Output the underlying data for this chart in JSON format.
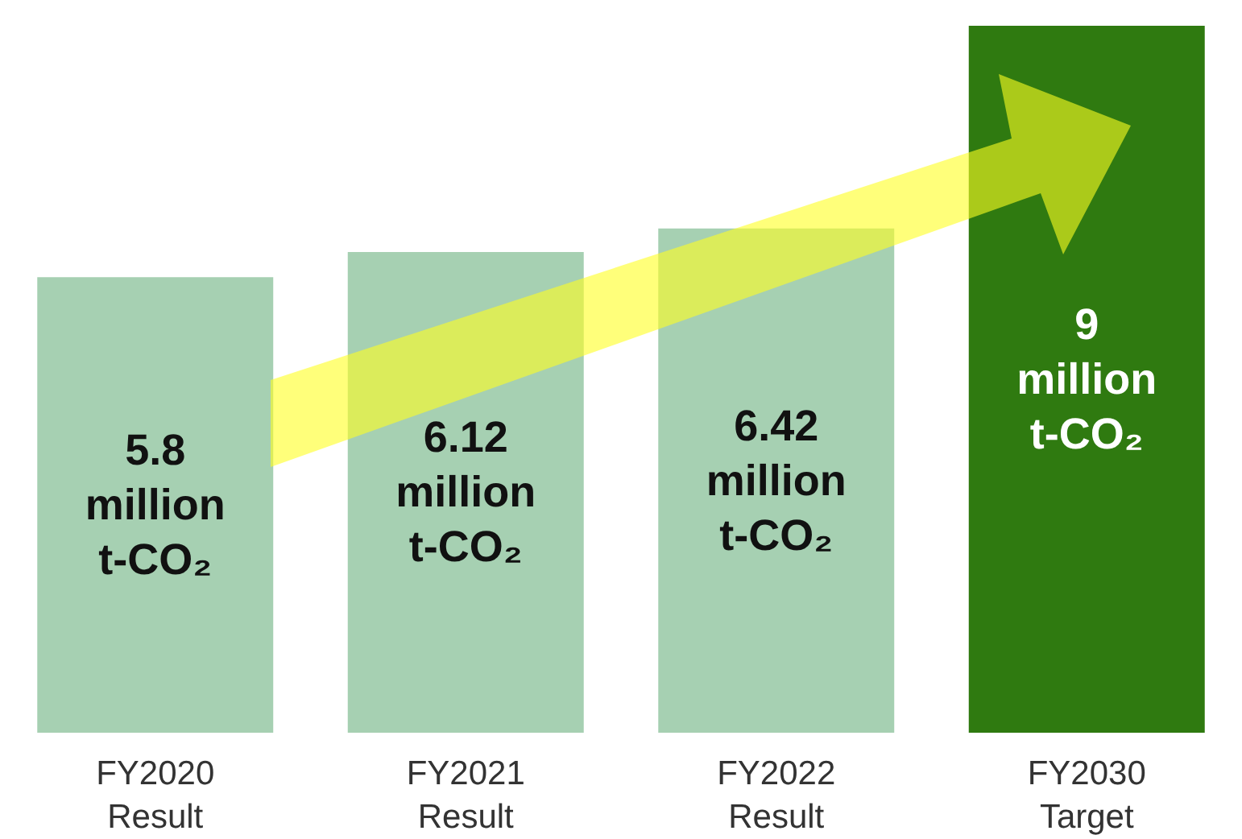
{
  "chart_data": {
    "type": "bar",
    "categories": [
      "FY2020 Result",
      "FY2021 Result",
      "FY2022 Result",
      "FY2030 Target"
    ],
    "values": [
      5.8,
      6.12,
      6.42,
      9
    ],
    "colors": [
      "#a6d0b2",
      "#a6d0b2",
      "#a6d0b2",
      "#2f7a10"
    ],
    "value_labels": [
      "5.8 million t-CO₂",
      "6.12 million t-CO₂",
      "6.42 million t-CO₂",
      "9 million t-CO₂"
    ],
    "tick_labels": "x"
  }
}
